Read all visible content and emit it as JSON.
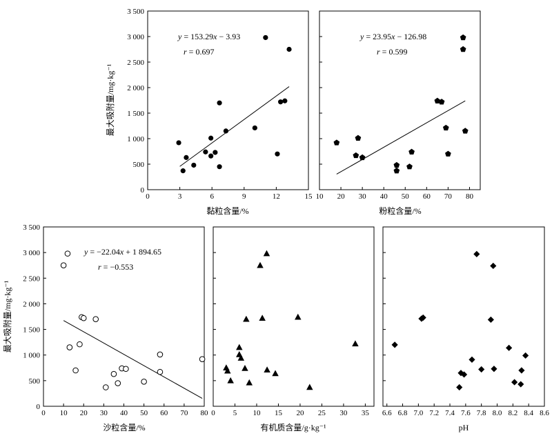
{
  "chart_data": [
    {
      "type": "scatter",
      "marker": "filled-circle",
      "xlabel": "黏粒含量/%",
      "ylabel": "最大吸附量/mg·kg⁻¹",
      "xlim": [
        0,
        15
      ],
      "ylim": [
        0,
        3500
      ],
      "xticks": [
        "0",
        "3",
        "6",
        "9",
        "12",
        "15"
      ],
      "yticks": [
        "0",
        "500",
        "1 000",
        "1 500",
        "2 000",
        "2 500",
        "3 000",
        "3 500"
      ],
      "equation": "y = 153.29x − 3.93",
      "r_text": "r = 0.697",
      "fit": {
        "slope": 153.29,
        "intercept": -3.93,
        "x_from": 3.0,
        "x_to": 13.2
      },
      "points": [
        {
          "x": 2.9,
          "y": 920
        },
        {
          "x": 3.3,
          "y": 370
        },
        {
          "x": 3.6,
          "y": 630
        },
        {
          "x": 4.3,
          "y": 480
        },
        {
          "x": 5.4,
          "y": 740
        },
        {
          "x": 5.9,
          "y": 660
        },
        {
          "x": 5.9,
          "y": 1010
        },
        {
          "x": 6.3,
          "y": 730
        },
        {
          "x": 6.7,
          "y": 450
        },
        {
          "x": 6.7,
          "y": 1700
        },
        {
          "x": 7.3,
          "y": 1150
        },
        {
          "x": 10.0,
          "y": 1210
        },
        {
          "x": 11.0,
          "y": 2980
        },
        {
          "x": 12.1,
          "y": 700
        },
        {
          "x": 12.4,
          "y": 1720
        },
        {
          "x": 12.8,
          "y": 1740
        },
        {
          "x": 13.2,
          "y": 2750
        }
      ]
    },
    {
      "type": "scatter",
      "marker": "filled-pentagon",
      "xlabel": "粉粒含量/%",
      "ylabel": "",
      "xlim": [
        10,
        85
      ],
      "ylim": [
        0,
        3500
      ],
      "xticks": [
        "10",
        "20",
        "30",
        "40",
        "50",
        "60",
        "70",
        "80"
      ],
      "yticks": [],
      "equation": "y = 23.95x − 126.98",
      "r_text": "r = 0.599",
      "fit": {
        "slope": 23.95,
        "intercept": -126.98,
        "x_from": 18,
        "x_to": 78
      },
      "points": [
        {
          "x": 18,
          "y": 920
        },
        {
          "x": 27,
          "y": 670
        },
        {
          "x": 28,
          "y": 1010
        },
        {
          "x": 30,
          "y": 630
        },
        {
          "x": 46,
          "y": 370
        },
        {
          "x": 46,
          "y": 480
        },
        {
          "x": 52,
          "y": 450
        },
        {
          "x": 53,
          "y": 740
        },
        {
          "x": 65,
          "y": 1740
        },
        {
          "x": 67,
          "y": 1720
        },
        {
          "x": 69,
          "y": 1210
        },
        {
          "x": 70,
          "y": 700
        },
        {
          "x": 77,
          "y": 2750
        },
        {
          "x": 77,
          "y": 2980
        },
        {
          "x": 78,
          "y": 1150
        }
      ]
    },
    {
      "type": "scatter",
      "marker": "open-circle",
      "xlabel": "沙粒含量/%",
      "ylabel": "最大吸附量/mg·kg⁻¹",
      "xlim": [
        0,
        80
      ],
      "ylim": [
        0,
        3500
      ],
      "xticks": [
        "0",
        "10",
        "20",
        "30",
        "40",
        "50",
        "60",
        "70",
        "80"
      ],
      "yticks": [
        "0",
        "500",
        "1 000",
        "1 500",
        "2 000",
        "2 500",
        "3 000",
        "3 500"
      ],
      "equation": "y = −22.04x + 1 894.65",
      "r_text": "r = −0.553",
      "fit": {
        "slope": -22.04,
        "intercept": 1894.65,
        "x_from": 10,
        "x_to": 79
      },
      "points": [
        {
          "x": 10,
          "y": 2750
        },
        {
          "x": 12,
          "y": 2980
        },
        {
          "x": 13,
          "y": 1150
        },
        {
          "x": 16,
          "y": 700
        },
        {
          "x": 18,
          "y": 1210
        },
        {
          "x": 19,
          "y": 1740
        },
        {
          "x": 20,
          "y": 1720
        },
        {
          "x": 26,
          "y": 1700
        },
        {
          "x": 31,
          "y": 370
        },
        {
          "x": 35,
          "y": 630
        },
        {
          "x": 37,
          "y": 450
        },
        {
          "x": 39,
          "y": 740
        },
        {
          "x": 41,
          "y": 730
        },
        {
          "x": 50,
          "y": 480
        },
        {
          "x": 58,
          "y": 1010
        },
        {
          "x": 58,
          "y": 670
        },
        {
          "x": 79,
          "y": 920
        }
      ]
    },
    {
      "type": "scatter",
      "marker": "filled-triangle",
      "xlabel": "有机质含量/g·kg⁻¹",
      "ylabel": "",
      "xlim": [
        0,
        37
      ],
      "ylim": [
        0,
        3500
      ],
      "xticks": [
        "0",
        "5",
        "10",
        "15",
        "20",
        "25",
        "30",
        "35"
      ],
      "yticks": [],
      "equation": "",
      "r_text": "",
      "fit": null,
      "points": [
        {
          "x": 3.0,
          "y": 750
        },
        {
          "x": 3.3,
          "y": 690
        },
        {
          "x": 4.0,
          "y": 500
        },
        {
          "x": 6.0,
          "y": 1150
        },
        {
          "x": 6.0,
          "y": 1010
        },
        {
          "x": 6.4,
          "y": 940
        },
        {
          "x": 7.3,
          "y": 740
        },
        {
          "x": 7.6,
          "y": 1700
        },
        {
          "x": 8.3,
          "y": 460
        },
        {
          "x": 10.8,
          "y": 2750
        },
        {
          "x": 11.3,
          "y": 1720
        },
        {
          "x": 12.3,
          "y": 2980
        },
        {
          "x": 12.4,
          "y": 710
        },
        {
          "x": 14.3,
          "y": 640
        },
        {
          "x": 19.5,
          "y": 1740
        },
        {
          "x": 22.2,
          "y": 370
        },
        {
          "x": 32.7,
          "y": 1220
        }
      ]
    },
    {
      "type": "scatter",
      "marker": "filled-diamond",
      "xlabel": "pH",
      "ylabel": "",
      "xlim": [
        6.55,
        8.6
      ],
      "ylim": [
        0,
        3500
      ],
      "xticks": [
        "6.6",
        "6.8",
        "7.0",
        "7.2",
        "7.4",
        "7.6",
        "7.8",
        "8.0",
        "8.2",
        "8.4",
        "8.6"
      ],
      "yticks": [],
      "equation": "",
      "r_text": "",
      "fit": null,
      "points": [
        {
          "x": 6.7,
          "y": 1200
        },
        {
          "x": 7.04,
          "y": 1710
        },
        {
          "x": 7.06,
          "y": 1730
        },
        {
          "x": 7.52,
          "y": 370
        },
        {
          "x": 7.54,
          "y": 650
        },
        {
          "x": 7.58,
          "y": 620
        },
        {
          "x": 7.68,
          "y": 910
        },
        {
          "x": 7.74,
          "y": 2970
        },
        {
          "x": 7.8,
          "y": 720
        },
        {
          "x": 7.92,
          "y": 1690
        },
        {
          "x": 7.95,
          "y": 2740
        },
        {
          "x": 7.96,
          "y": 730
        },
        {
          "x": 8.15,
          "y": 1140
        },
        {
          "x": 8.22,
          "y": 470
        },
        {
          "x": 8.3,
          "y": 430
        },
        {
          "x": 8.31,
          "y": 700
        },
        {
          "x": 8.36,
          "y": 990
        }
      ]
    }
  ]
}
